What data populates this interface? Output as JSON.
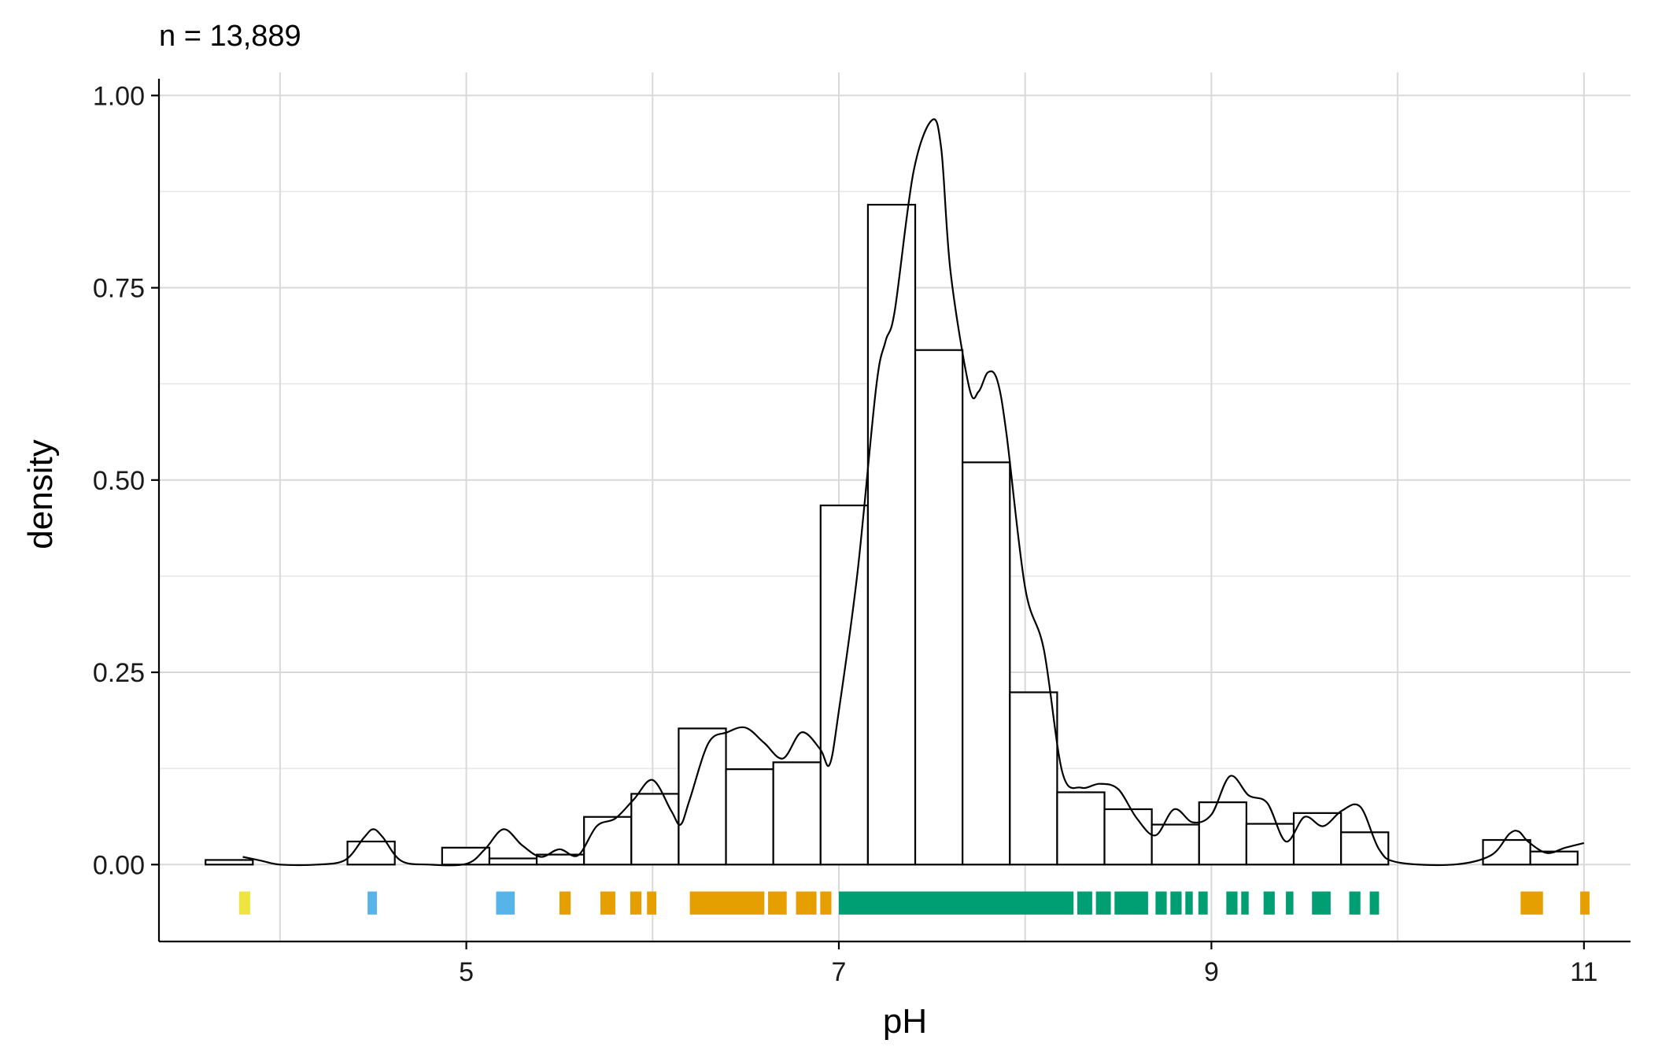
{
  "chart_data": {
    "type": "histogram",
    "subtitle": "n = 13,889",
    "xlabel": "pH",
    "ylabel": "density",
    "xlim": [
      3.35,
      11.25
    ],
    "ylim": [
      -0.1,
      1.03
    ],
    "x_ticks": [
      5,
      7,
      9,
      11
    ],
    "x_tick_labels": [
      "5",
      "7",
      "9",
      "11"
    ],
    "x_grid_major": [
      4,
      6,
      8,
      10
    ],
    "y_ticks": [
      0,
      0.25,
      0.5,
      0.75,
      1.0
    ],
    "y_tick_labels": [
      "0.00",
      "0.25",
      "0.50",
      "0.75",
      "1.00"
    ],
    "y_grid_minor": [
      0.125,
      0.375,
      0.625,
      0.875
    ],
    "grid": true,
    "bin_width": 0.254,
    "bars": [
      {
        "x0": 3.6,
        "x1": 3.854,
        "density": 0.006
      },
      {
        "x0": 3.854,
        "x1": 4.108,
        "density": 0.0
      },
      {
        "x0": 4.108,
        "x1": 4.362,
        "density": 0.0
      },
      {
        "x0": 4.362,
        "x1": 4.616,
        "density": 0.03
      },
      {
        "x0": 4.616,
        "x1": 4.87,
        "density": 0.0
      },
      {
        "x0": 4.87,
        "x1": 5.124,
        "density": 0.022
      },
      {
        "x0": 5.124,
        "x1": 5.378,
        "density": 0.008
      },
      {
        "x0": 5.378,
        "x1": 5.632,
        "density": 0.013
      },
      {
        "x0": 5.632,
        "x1": 5.886,
        "density": 0.062
      },
      {
        "x0": 5.886,
        "x1": 6.14,
        "density": 0.092
      },
      {
        "x0": 6.14,
        "x1": 6.394,
        "density": 0.177
      },
      {
        "x0": 6.394,
        "x1": 6.648,
        "density": 0.124
      },
      {
        "x0": 6.648,
        "x1": 6.902,
        "density": 0.133
      },
      {
        "x0": 6.902,
        "x1": 7.156,
        "density": 0.467
      },
      {
        "x0": 7.156,
        "x1": 7.41,
        "density": 0.858
      },
      {
        "x0": 7.41,
        "x1": 7.664,
        "density": 0.669
      },
      {
        "x0": 7.664,
        "x1": 7.918,
        "density": 0.523
      },
      {
        "x0": 7.918,
        "x1": 8.172,
        "density": 0.224
      },
      {
        "x0": 8.172,
        "x1": 8.426,
        "density": 0.094
      },
      {
        "x0": 8.426,
        "x1": 8.68,
        "density": 0.072
      },
      {
        "x0": 8.68,
        "x1": 8.934,
        "density": 0.052
      },
      {
        "x0": 8.934,
        "x1": 9.188,
        "density": 0.081
      },
      {
        "x0": 9.188,
        "x1": 9.442,
        "density": 0.053
      },
      {
        "x0": 9.442,
        "x1": 9.696,
        "density": 0.067
      },
      {
        "x0": 9.696,
        "x1": 9.95,
        "density": 0.042
      },
      {
        "x0": 9.95,
        "x1": 10.204,
        "density": 0.0
      },
      {
        "x0": 10.204,
        "x1": 10.458,
        "density": 0.0
      },
      {
        "x0": 10.458,
        "x1": 10.712,
        "density": 0.032
      },
      {
        "x0": 10.712,
        "x1": 10.966,
        "density": 0.017
      }
    ],
    "density_curve": [
      [
        3.8,
        0.01
      ],
      [
        3.9,
        0.005
      ],
      [
        4.0,
        0.0
      ],
      [
        4.2,
        0.0
      ],
      [
        4.35,
        0.006
      ],
      [
        4.45,
        0.035
      ],
      [
        4.5,
        0.046
      ],
      [
        4.55,
        0.036
      ],
      [
        4.65,
        0.005
      ],
      [
        4.8,
        0.0
      ],
      [
        5.0,
        0.001
      ],
      [
        5.1,
        0.02
      ],
      [
        5.2,
        0.046
      ],
      [
        5.3,
        0.025
      ],
      [
        5.4,
        0.01
      ],
      [
        5.5,
        0.02
      ],
      [
        5.6,
        0.012
      ],
      [
        5.7,
        0.05
      ],
      [
        5.8,
        0.06
      ],
      [
        5.9,
        0.085
      ],
      [
        6.0,
        0.11
      ],
      [
        6.1,
        0.07
      ],
      [
        6.15,
        0.052
      ],
      [
        6.2,
        0.085
      ],
      [
        6.3,
        0.158
      ],
      [
        6.4,
        0.172
      ],
      [
        6.5,
        0.178
      ],
      [
        6.6,
        0.158
      ],
      [
        6.7,
        0.138
      ],
      [
        6.8,
        0.172
      ],
      [
        6.9,
        0.15
      ],
      [
        6.95,
        0.13
      ],
      [
        7.0,
        0.2
      ],
      [
        7.1,
        0.38
      ],
      [
        7.2,
        0.62
      ],
      [
        7.25,
        0.68
      ],
      [
        7.3,
        0.72
      ],
      [
        7.4,
        0.9
      ],
      [
        7.5,
        0.968
      ],
      [
        7.55,
        0.93
      ],
      [
        7.6,
        0.77
      ],
      [
        7.7,
        0.62
      ],
      [
        7.75,
        0.615
      ],
      [
        7.8,
        0.64
      ],
      [
        7.85,
        0.63
      ],
      [
        7.9,
        0.56
      ],
      [
        8.0,
        0.36
      ],
      [
        8.1,
        0.28
      ],
      [
        8.2,
        0.12
      ],
      [
        8.3,
        0.1
      ],
      [
        8.4,
        0.105
      ],
      [
        8.5,
        0.098
      ],
      [
        8.6,
        0.06
      ],
      [
        8.7,
        0.038
      ],
      [
        8.8,
        0.072
      ],
      [
        8.9,
        0.055
      ],
      [
        9.0,
        0.065
      ],
      [
        9.1,
        0.115
      ],
      [
        9.2,
        0.09
      ],
      [
        9.3,
        0.08
      ],
      [
        9.4,
        0.03
      ],
      [
        9.5,
        0.062
      ],
      [
        9.6,
        0.05
      ],
      [
        9.7,
        0.07
      ],
      [
        9.8,
        0.075
      ],
      [
        9.9,
        0.02
      ],
      [
        10.0,
        0.003
      ],
      [
        10.3,
        0.0
      ],
      [
        10.5,
        0.012
      ],
      [
        10.6,
        0.04
      ],
      [
        10.65,
        0.043
      ],
      [
        10.7,
        0.03
      ],
      [
        10.8,
        0.015
      ],
      [
        10.9,
        0.022
      ],
      [
        11.0,
        0.028
      ]
    ],
    "rug_bands": [
      {
        "x0": 3.78,
        "x1": 3.84,
        "color": "#F0E442"
      },
      {
        "x0": 4.47,
        "x1": 4.52,
        "color": "#56B4E9"
      },
      {
        "x0": 5.16,
        "x1": 5.26,
        "color": "#56B4E9"
      },
      {
        "x0": 5.5,
        "x1": 5.56,
        "color": "#E69F00"
      },
      {
        "x0": 5.72,
        "x1": 5.8,
        "color": "#E69F00"
      },
      {
        "x0": 5.88,
        "x1": 5.94,
        "color": "#E69F00"
      },
      {
        "x0": 5.97,
        "x1": 6.02,
        "color": "#E69F00"
      },
      {
        "x0": 6.2,
        "x1": 6.6,
        "color": "#E69F00"
      },
      {
        "x0": 6.62,
        "x1": 6.72,
        "color": "#E69F00"
      },
      {
        "x0": 6.77,
        "x1": 6.88,
        "color": "#E69F00"
      },
      {
        "x0": 6.9,
        "x1": 6.96,
        "color": "#E69F00"
      },
      {
        "x0": 7.0,
        "x1": 8.26,
        "color": "#009E73"
      },
      {
        "x0": 8.28,
        "x1": 8.36,
        "color": "#009E73"
      },
      {
        "x0": 8.38,
        "x1": 8.46,
        "color": "#009E73"
      },
      {
        "x0": 8.48,
        "x1": 8.66,
        "color": "#009E73"
      },
      {
        "x0": 8.7,
        "x1": 8.76,
        "color": "#009E73"
      },
      {
        "x0": 8.78,
        "x1": 8.84,
        "color": "#009E73"
      },
      {
        "x0": 8.86,
        "x1": 8.9,
        "color": "#009E73"
      },
      {
        "x0": 8.93,
        "x1": 8.98,
        "color": "#009E73"
      },
      {
        "x0": 9.08,
        "x1": 9.14,
        "color": "#009E73"
      },
      {
        "x0": 9.16,
        "x1": 9.2,
        "color": "#009E73"
      },
      {
        "x0": 9.28,
        "x1": 9.34,
        "color": "#009E73"
      },
      {
        "x0": 9.4,
        "x1": 9.44,
        "color": "#009E73"
      },
      {
        "x0": 9.54,
        "x1": 9.64,
        "color": "#009E73"
      },
      {
        "x0": 9.74,
        "x1": 9.8,
        "color": "#009E73"
      },
      {
        "x0": 9.85,
        "x1": 9.9,
        "color": "#009E73"
      },
      {
        "x0": 10.66,
        "x1": 10.78,
        "color": "#E69F00"
      },
      {
        "x0": 10.98,
        "x1": 11.03,
        "color": "#E69F00"
      }
    ],
    "rug_y_range": [
      -0.065,
      -0.035
    ]
  }
}
